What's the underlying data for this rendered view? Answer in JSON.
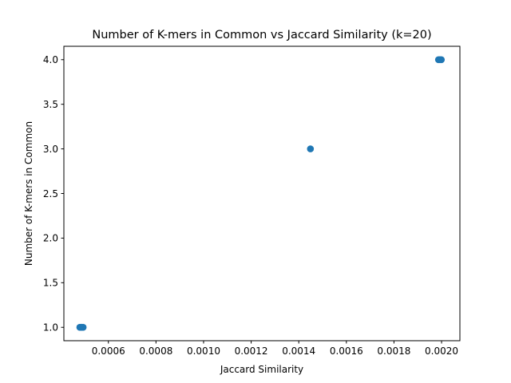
{
  "chart_data": {
    "type": "scatter",
    "title": "Number of K-mers in Common vs Jaccard Similarity (k=20)",
    "xlabel": "Jaccard Similarity",
    "ylabel": "Number of K-mers in Common",
    "xlim": [
      0.000413,
      0.002077
    ],
    "ylim": [
      0.85,
      4.15
    ],
    "xticks": [
      "0.0006",
      "0.0008",
      "0.0010",
      "0.0012",
      "0.0014",
      "0.0016",
      "0.0018",
      "0.0020"
    ],
    "xtick_values": [
      0.0006,
      0.0008,
      0.001,
      0.0012,
      0.0014,
      0.0016,
      0.0018,
      0.002
    ],
    "yticks": [
      "1.0",
      "1.5",
      "2.0",
      "2.5",
      "3.0",
      "3.5",
      "4.0"
    ],
    "ytick_values": [
      1.0,
      1.5,
      2.0,
      2.5,
      3.0,
      3.5,
      4.0
    ],
    "grid": false,
    "marker_color": "#1f77b4",
    "points": [
      {
        "x": 0.00048,
        "y": 1
      },
      {
        "x": 0.000484,
        "y": 1
      },
      {
        "x": 0.000487,
        "y": 1
      },
      {
        "x": 0.00049,
        "y": 1
      },
      {
        "x": 0.000494,
        "y": 1
      },
      {
        "x": 0.001449,
        "y": 3
      },
      {
        "x": 0.001987,
        "y": 4
      },
      {
        "x": 0.001993,
        "y": 4
      },
      {
        "x": 0.001999,
        "y": 4
      }
    ]
  }
}
